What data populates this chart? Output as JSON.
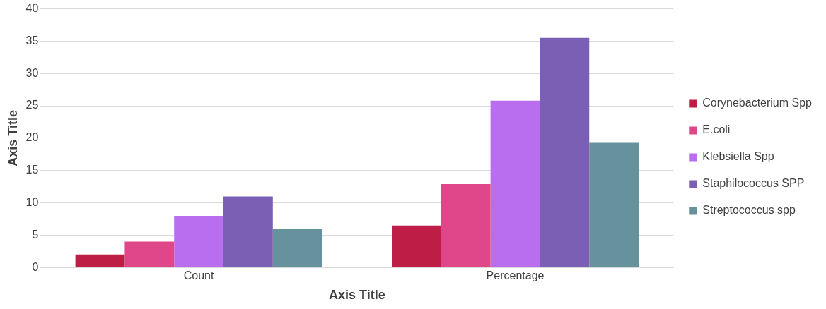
{
  "chart_data": {
    "type": "bar",
    "xlabel": "Axis Title",
    "ylabel": "Axis Title",
    "categories": [
      "Count",
      "Percentage"
    ],
    "series": [
      {
        "name": "Corynebacterium Spp",
        "color": "#be1e45",
        "values": [
          2,
          6.5
        ]
      },
      {
        "name": "E.coli",
        "color": "#e0468a",
        "values": [
          4,
          12.9
        ]
      },
      {
        "name": "Klebsiella Spp",
        "color": "#b96ef0",
        "values": [
          8,
          25.8
        ]
      },
      {
        "name": "Staphilococcus SPP",
        "color": "#7b5fb5",
        "values": [
          11,
          35.5
        ]
      },
      {
        "name": "Streptococcus spp",
        "color": "#66929e",
        "values": [
          6,
          19.4
        ]
      }
    ],
    "ylim": [
      0,
      40
    ],
    "yticks": [
      0,
      5,
      10,
      15,
      20,
      25,
      30,
      35,
      40
    ],
    "grid": "y",
    "legend": "right"
  }
}
